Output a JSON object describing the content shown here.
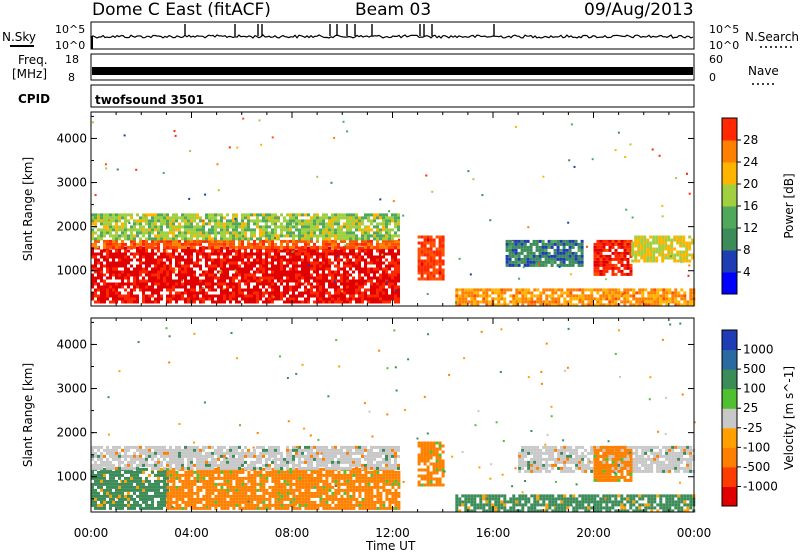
{
  "header": {
    "station": "Dome C East (fitACF)",
    "beam": "Beam 03",
    "date": "09/Aug/2013"
  },
  "sky_panel": {
    "left_label": "N.Sky",
    "right_label": "N.Search",
    "ticks_left": [
      "10^5",
      "10^0"
    ],
    "ticks_right": [
      "10^5",
      "10^0"
    ]
  },
  "freq_panel": {
    "left_label_top": "Freq.",
    "left_label_bottom": "[MHz]",
    "ticks_left": [
      "18",
      "8"
    ],
    "ticks_right": [
      "60",
      "0"
    ],
    "right_label": "Nave"
  },
  "cpid_panel": {
    "label": "CPID",
    "value": "twofsound 3501"
  },
  "colors": {
    "power_scale": [
      "#0000ff",
      "#1e3cb4",
      "#3c8c5a",
      "#50a85c",
      "#a0d040",
      "#ffb400",
      "#ff8000",
      "#ff5000",
      "#ff2800",
      "#e00000"
    ],
    "velocity_scale": [
      "#e00000",
      "#ff3c00",
      "#ff8000",
      "#ffa000",
      "#c8c8c8",
      "#c8c8c8",
      "#50c030",
      "#3c8c5a",
      "#2a6aa0",
      "#1e3cb4"
    ]
  },
  "chart_data": [
    {
      "type": "heatmap",
      "name": "power",
      "ylabel": "Slant Range [km]",
      "yticks": [
        "1000",
        "2000",
        "3000",
        "4000"
      ],
      "ylim": [
        200,
        4600
      ],
      "xlim": [
        0,
        24
      ],
      "colorbar": {
        "label": "Power [dB]",
        "ticks": [
          "4",
          "8",
          "12",
          "16",
          "20",
          "24",
          "28"
        ],
        "range": [
          0,
          32
        ]
      },
      "regions": [
        {
          "t0": 0.0,
          "t1": 12.2,
          "r0": 300,
          "r1": 1550,
          "level": 30
        },
        {
          "t0": 0.0,
          "t1": 12.2,
          "r0": 1550,
          "r1": 1700,
          "level": 24
        },
        {
          "t0": 0.0,
          "t1": 12.2,
          "r0": 1700,
          "r1": 2300,
          "level": 14
        },
        {
          "t0": 13.0,
          "t1": 14.0,
          "r0": 800,
          "r1": 1800,
          "level": 26
        },
        {
          "t0": 14.5,
          "t1": 24.0,
          "r0": 250,
          "r1": 600,
          "level": 20
        },
        {
          "t0": 16.5,
          "t1": 19.5,
          "r0": 1100,
          "r1": 1700,
          "level": 7
        },
        {
          "t0": 20.0,
          "t1": 21.5,
          "r0": 900,
          "r1": 1700,
          "level": 28
        },
        {
          "t0": 21.5,
          "t1": 24.0,
          "r0": 1200,
          "r1": 1800,
          "level": 16
        }
      ]
    },
    {
      "type": "heatmap",
      "name": "velocity",
      "ylabel": "Slant Range [km]",
      "yticks": [
        "1000",
        "2000",
        "3000",
        "4000"
      ],
      "ylim": [
        200,
        4600
      ],
      "xlim": [
        0,
        24
      ],
      "xticks": [
        "00:00",
        "04:00",
        "08:00",
        "12:00",
        "16:00",
        "20:00",
        "00:00"
      ],
      "xlabel": "Time UT",
      "colorbar": {
        "label": "Velocity [m s^-1]",
        "ticks": [
          "1000",
          "500",
          "100",
          "25",
          "-25",
          "-100",
          "-500",
          "-1000"
        ]
      },
      "regions": [
        {
          "t0": 0.0,
          "t1": 3.0,
          "r0": 300,
          "r1": 1200,
          "level": 100
        },
        {
          "t0": 3.0,
          "t1": 12.2,
          "r0": 300,
          "r1": 1200,
          "level": -100
        },
        {
          "t0": 0.0,
          "t1": 12.2,
          "r0": 1200,
          "r1": 1700,
          "level": 0
        },
        {
          "t0": 13.0,
          "t1": 14.0,
          "r0": 800,
          "r1": 1800,
          "level": -100
        },
        {
          "t0": 14.5,
          "t1": 24.0,
          "r0": 250,
          "r1": 600,
          "level": 100
        },
        {
          "t0": 17.0,
          "t1": 24.0,
          "r0": 1100,
          "r1": 1700,
          "level": 0
        },
        {
          "t0": 20.0,
          "t1": 21.5,
          "r0": 900,
          "r1": 1700,
          "level": -100
        }
      ]
    }
  ]
}
